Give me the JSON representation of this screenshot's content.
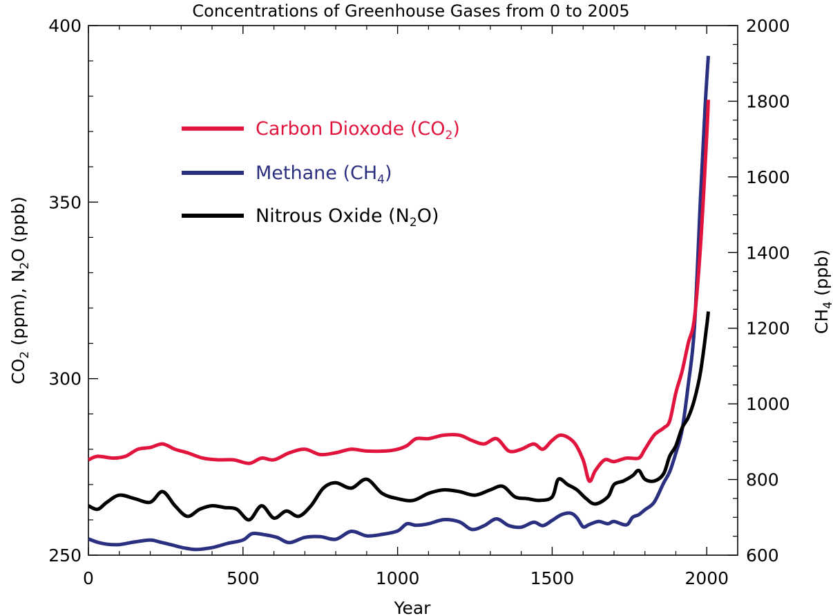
{
  "chart_data": {
    "type": "line",
    "title": "Concentrations of Greenhouse Gases from 0 to 2005",
    "xlabel": "Year",
    "ylabel_left": {
      "base": "CO",
      "sub1": "2",
      "mid": " (ppm), N",
      "sub2": "2",
      "tail": "O (ppb)"
    },
    "ylabel_right": {
      "base": "CH",
      "sub": "4",
      "tail": " (ppb)"
    },
    "xlim": [
      0,
      2100
    ],
    "ylim_left": [
      250,
      400
    ],
    "ylim_right": [
      600,
      2000
    ],
    "x_ticks": [
      0,
      500,
      1000,
      1500,
      2000
    ],
    "y_left_ticks": [
      250,
      300,
      350,
      400
    ],
    "y_right_ticks": [
      600,
      800,
      1000,
      1200,
      1400,
      1600,
      1800,
      2000
    ],
    "grid": false,
    "legend_position": "upper-left",
    "series": [
      {
        "key": "co2",
        "name": "Carbon Dioxode (CO₂)",
        "legend": {
          "base": "Carbon Dioxode (CO",
          "sub": "2",
          "tail": ")"
        },
        "color": "#e0143c",
        "axis": "left",
        "points": [
          [
            0,
            277
          ],
          [
            30,
            278
          ],
          [
            80,
            277.5
          ],
          [
            120,
            278
          ],
          [
            160,
            280
          ],
          [
            200,
            280.5
          ],
          [
            240,
            281.5
          ],
          [
            280,
            280
          ],
          [
            320,
            279
          ],
          [
            370,
            277.5
          ],
          [
            420,
            277
          ],
          [
            470,
            277
          ],
          [
            520,
            276
          ],
          [
            560,
            277.5
          ],
          [
            600,
            277
          ],
          [
            650,
            279
          ],
          [
            700,
            280
          ],
          [
            750,
            278.5
          ],
          [
            800,
            279
          ],
          [
            850,
            280
          ],
          [
            900,
            279.5
          ],
          [
            960,
            279.5
          ],
          [
            1000,
            280
          ],
          [
            1030,
            281
          ],
          [
            1060,
            283
          ],
          [
            1100,
            283
          ],
          [
            1150,
            284
          ],
          [
            1200,
            284
          ],
          [
            1240,
            282.5
          ],
          [
            1280,
            281.5
          ],
          [
            1320,
            283
          ],
          [
            1360,
            279.5
          ],
          [
            1400,
            280
          ],
          [
            1440,
            281.5
          ],
          [
            1470,
            280
          ],
          [
            1500,
            282.5
          ],
          [
            1530,
            284
          ],
          [
            1570,
            282
          ],
          [
            1600,
            277
          ],
          [
            1620,
            271
          ],
          [
            1640,
            274
          ],
          [
            1670,
            277
          ],
          [
            1700,
            276.5
          ],
          [
            1740,
            277.5
          ],
          [
            1780,
            277.5
          ],
          [
            1800,
            280
          ],
          [
            1830,
            284
          ],
          [
            1860,
            286
          ],
          [
            1880,
            288
          ],
          [
            1900,
            296
          ],
          [
            1920,
            302
          ],
          [
            1940,
            310
          ],
          [
            1960,
            317
          ],
          [
            1980,
            338
          ],
          [
            2000,
            369
          ],
          [
            2005,
            379
          ]
        ]
      },
      {
        "key": "ch4",
        "name": "Methane (CH₄)",
        "legend": {
          "base": "Methane (CH",
          "sub": "4",
          "tail": ")"
        },
        "color": "#2b2f7f",
        "axis": "right",
        "points": [
          [
            0,
            643
          ],
          [
            30,
            634
          ],
          [
            60,
            629
          ],
          [
            100,
            628
          ],
          [
            150,
            635
          ],
          [
            200,
            640
          ],
          [
            230,
            635
          ],
          [
            270,
            627
          ],
          [
            310,
            619
          ],
          [
            350,
            615
          ],
          [
            400,
            620
          ],
          [
            450,
            631
          ],
          [
            500,
            640
          ],
          [
            530,
            657
          ],
          [
            570,
            654
          ],
          [
            610,
            647
          ],
          [
            650,
            633
          ],
          [
            700,
            647
          ],
          [
            750,
            649
          ],
          [
            800,
            642
          ],
          [
            850,
            663
          ],
          [
            900,
            651
          ],
          [
            950,
            655
          ],
          [
            1000,
            664
          ],
          [
            1030,
            683
          ],
          [
            1060,
            679
          ],
          [
            1100,
            683
          ],
          [
            1150,
            694
          ],
          [
            1200,
            688
          ],
          [
            1240,
            668
          ],
          [
            1280,
            678
          ],
          [
            1320,
            696
          ],
          [
            1360,
            678
          ],
          [
            1400,
            674
          ],
          [
            1440,
            687
          ],
          [
            1470,
            678
          ],
          [
            1500,
            692
          ],
          [
            1530,
            707
          ],
          [
            1560,
            711
          ],
          [
            1580,
            699
          ],
          [
            1600,
            675
          ],
          [
            1620,
            681
          ],
          [
            1650,
            689
          ],
          [
            1680,
            683
          ],
          [
            1700,
            689
          ],
          [
            1740,
            680
          ],
          [
            1760,
            700
          ],
          [
            1780,
            707
          ],
          [
            1800,
            720
          ],
          [
            1830,
            740
          ],
          [
            1860,
            790
          ],
          [
            1880,
            820
          ],
          [
            1900,
            870
          ],
          [
            1920,
            930
          ],
          [
            1940,
            1050
          ],
          [
            1960,
            1200
          ],
          [
            1980,
            1550
          ],
          [
            1995,
            1790
          ],
          [
            2005,
            1920
          ]
        ]
      },
      {
        "key": "n2o",
        "name": "Nitrous Oxide (N₂O)",
        "legend": {
          "base": "Nitrous Oxide (N",
          "sub": "2",
          "tail": "O)"
        },
        "color": "#000000",
        "axis": "left",
        "points": [
          [
            0,
            264
          ],
          [
            30,
            263
          ],
          [
            60,
            265
          ],
          [
            100,
            267
          ],
          [
            150,
            266
          ],
          [
            200,
            265
          ],
          [
            240,
            268
          ],
          [
            280,
            264
          ],
          [
            320,
            261
          ],
          [
            360,
            263
          ],
          [
            400,
            264
          ],
          [
            440,
            263.5
          ],
          [
            480,
            263
          ],
          [
            520,
            260
          ],
          [
            560,
            264
          ],
          [
            600,
            260.5
          ],
          [
            640,
            262.5
          ],
          [
            680,
            261
          ],
          [
            720,
            264
          ],
          [
            760,
            269
          ],
          [
            800,
            270.5
          ],
          [
            850,
            269
          ],
          [
            900,
            271.5
          ],
          [
            950,
            267.5
          ],
          [
            1000,
            266
          ],
          [
            1050,
            265.5
          ],
          [
            1100,
            267.5
          ],
          [
            1150,
            268.5
          ],
          [
            1200,
            268
          ],
          [
            1250,
            267
          ],
          [
            1300,
            268.5
          ],
          [
            1340,
            269.5
          ],
          [
            1380,
            266.5
          ],
          [
            1420,
            266
          ],
          [
            1460,
            265.5
          ],
          [
            1500,
            266.5
          ],
          [
            1520,
            271.5
          ],
          [
            1550,
            270
          ],
          [
            1580,
            268.5
          ],
          [
            1610,
            266
          ],
          [
            1640,
            264.5
          ],
          [
            1680,
            266.5
          ],
          [
            1700,
            270
          ],
          [
            1730,
            271
          ],
          [
            1760,
            272.5
          ],
          [
            1780,
            274
          ],
          [
            1800,
            271.5
          ],
          [
            1830,
            271
          ],
          [
            1860,
            273
          ],
          [
            1880,
            278
          ],
          [
            1900,
            281
          ],
          [
            1920,
            286
          ],
          [
            1940,
            289
          ],
          [
            1960,
            294
          ],
          [
            1980,
            302
          ],
          [
            2000,
            315
          ],
          [
            2005,
            319
          ]
        ]
      }
    ]
  }
}
